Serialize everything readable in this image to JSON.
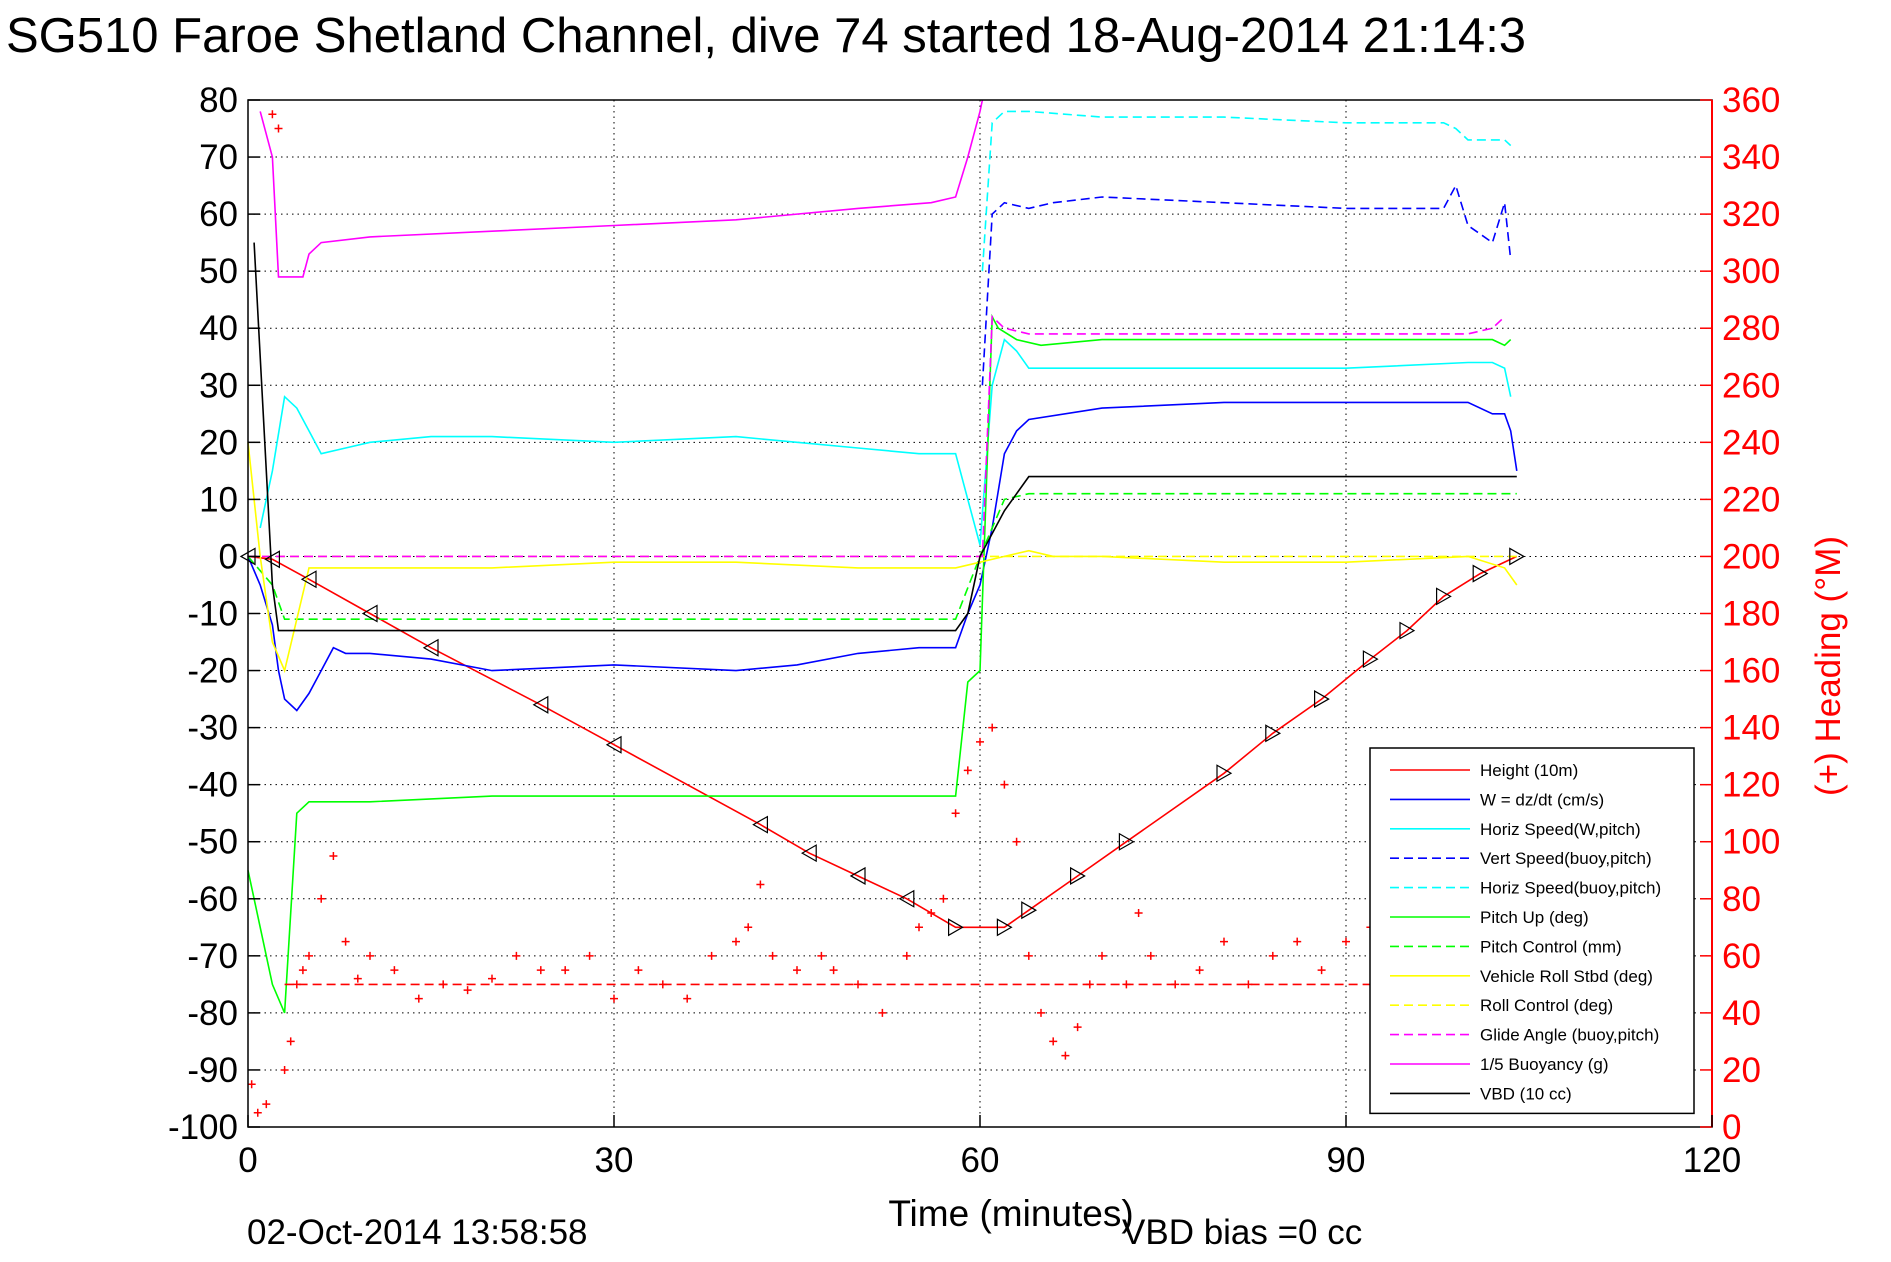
{
  "chart_data": {
    "type": "line",
    "title": "SG510 Faroe Shetland Channel, dive 74 started 18-Aug-2014 21:14:3",
    "xlabel": "Time (minutes)",
    "ylabel_right": "(+) Heading (°M)",
    "xlim": [
      0,
      120
    ],
    "ylim_left": [
      -100,
      80
    ],
    "ylim_right": [
      0,
      360
    ],
    "xticks": [
      "0",
      "30",
      "60",
      "90",
      "120"
    ],
    "yticks_left": [
      "80",
      "70",
      "60",
      "50",
      "40",
      "30",
      "20",
      "10",
      "0",
      "-10",
      "-20",
      "-30",
      "-40",
      "-50",
      "-60",
      "-70",
      "-80",
      "-90",
      "-100"
    ],
    "yticks_right": [
      "360",
      "340",
      "320",
      "300",
      "280",
      "260",
      "240",
      "220",
      "200",
      "180",
      "160",
      "140",
      "120",
      "100",
      "80",
      "60",
      "40",
      "20",
      "0"
    ],
    "grid": true,
    "legend_position": "bottom-right",
    "footer_date": "02-Oct-2014 13:58:58",
    "footer_note": "VBD bias =0 cc",
    "colors": {
      "red": "#ff0000",
      "blue": "#0000ff",
      "cyan": "#00ffff",
      "green": "#00ff00",
      "yellow": "#ffff00",
      "magenta": "#ff00ff",
      "black": "#000000"
    },
    "series": [
      {
        "name": "Height (10m)",
        "color": "#ff0000",
        "dash": "solid",
        "x": [
          0,
          2,
          5,
          10,
          15,
          24,
          30,
          42,
          46,
          50,
          54,
          58,
          62,
          64,
          68,
          72,
          80,
          84,
          88,
          92,
          95,
          98,
          101,
          104
        ],
        "y": [
          0,
          -0.5,
          -4,
          -10,
          -16,
          -26,
          -33,
          -47,
          -52,
          -56,
          -60,
          -65,
          -65,
          -62,
          -56,
          -50,
          -38,
          -31,
          -25,
          -18,
          -13,
          -7,
          -3,
          0
        ]
      },
      {
        "name": "W = dz/dt (cm/s)",
        "color": "#0000ff",
        "dash": "solid",
        "x": [
          0,
          1,
          2,
          2.5,
          3,
          4,
          5,
          6,
          7,
          8,
          10,
          15,
          20,
          30,
          40,
          45,
          50,
          55,
          58,
          59,
          60,
          61,
          62,
          63,
          64,
          70,
          80,
          90,
          100,
          102,
          103,
          103.5,
          104
        ],
        "y": [
          0,
          -5,
          -12,
          -20,
          -25,
          -27,
          -24,
          -20,
          -16,
          -17,
          -17,
          -18,
          -20,
          -19,
          -20,
          -19,
          -17,
          -16,
          -16,
          -10,
          -5,
          5,
          18,
          22,
          24,
          26,
          27,
          27,
          27,
          25,
          25,
          22,
          15
        ]
      },
      {
        "name": "Horiz Speed(W,pitch)",
        "color": "#00ffff",
        "dash": "solid",
        "x": [
          1,
          2,
          3,
          4,
          5,
          6,
          8,
          10,
          15,
          20,
          30,
          40,
          45,
          50,
          55,
          58,
          59,
          60,
          61,
          62,
          63,
          64,
          70,
          80,
          90,
          100,
          102,
          103,
          103.5
        ],
        "y": [
          5,
          15,
          28,
          26,
          22,
          18,
          19,
          20,
          21,
          21,
          20,
          21,
          20,
          19,
          18,
          18,
          10,
          2,
          30,
          38,
          36,
          33,
          33,
          33,
          33,
          34,
          34,
          33,
          28
        ]
      },
      {
        "name": "Vert Speed(buoy,pitch)",
        "color": "#0000ff",
        "dash": "dashed",
        "x": [
          60.2,
          61,
          62,
          64,
          66,
          70,
          80,
          90,
          98,
          99,
          100,
          102,
          103,
          103.5
        ],
        "y": [
          30,
          60,
          62,
          61,
          62,
          63,
          62,
          61,
          61,
          65,
          58,
          55,
          62,
          52
        ]
      },
      {
        "name": "Horiz Speed(buoy,pitch)",
        "color": "#00ffff",
        "dash": "dashed",
        "x": [
          60.2,
          61,
          62,
          64,
          70,
          80,
          90,
          98,
          99,
          100,
          102,
          103,
          103.5
        ],
        "y": [
          50,
          76,
          78,
          78,
          77,
          77,
          76,
          76,
          75,
          73,
          73,
          73,
          72
        ]
      },
      {
        "name": "Pitch Up (deg)",
        "color": "#00ff00",
        "dash": "solid",
        "x": [
          0,
          1,
          2,
          3,
          4,
          5,
          10,
          20,
          30,
          40,
          50,
          55,
          58,
          59,
          60,
          61,
          61.5,
          63,
          65,
          70,
          80,
          90,
          100,
          102,
          103,
          103.5
        ],
        "y": [
          -55,
          -65,
          -75,
          -80,
          -45,
          -43,
          -43,
          -42,
          -42,
          -42,
          -42,
          -42,
          -42,
          -22,
          -20,
          42,
          40,
          38,
          37,
          38,
          38,
          38,
          38,
          38,
          37,
          38
        ]
      },
      {
        "name": "Pitch Control (mm)",
        "color": "#00ff00",
        "dash": "dashed",
        "x": [
          0,
          2,
          3,
          5,
          10,
          20,
          30,
          40,
          50,
          58,
          60,
          62,
          64,
          70,
          80,
          90,
          100,
          104
        ],
        "y": [
          0,
          -5,
          -11,
          -11,
          -11,
          -11,
          -11,
          -11,
          -11,
          -11,
          0,
          10,
          11,
          11,
          11,
          11,
          11,
          11
        ]
      },
      {
        "name": "Vehicle Roll Stbd (deg)",
        "color": "#ffff00",
        "dash": "solid",
        "x": [
          0,
          1,
          2,
          3,
          5,
          10,
          20,
          30,
          40,
          50,
          58,
          60,
          62,
          64,
          66,
          70,
          80,
          90,
          100,
          103,
          104
        ],
        "y": [
          20,
          0,
          -15,
          -20,
          -2,
          -2,
          -2,
          -1,
          -1,
          -2,
          -2,
          -1,
          0,
          1,
          0,
          0,
          -1,
          -1,
          0,
          -2,
          -5
        ]
      },
      {
        "name": "Roll Control (deg)",
        "color": "#ffff00",
        "dash": "dashed",
        "x": [
          0,
          2,
          4,
          10,
          20,
          30,
          40,
          50,
          58,
          60,
          62,
          64,
          70,
          80,
          90,
          100,
          104
        ],
        "y": [
          0,
          0,
          0,
          0,
          0,
          0,
          0,
          0,
          0,
          0,
          0,
          0,
          0,
          0,
          0,
          0,
          0
        ]
      },
      {
        "name": "Glide Angle (buoy,pitch)",
        "color": "#ff00ff",
        "dash": "dashed",
        "x": [
          0,
          10,
          20,
          30,
          40,
          50,
          58,
          60.2,
          61,
          62,
          64,
          70,
          80,
          90,
          100,
          102,
          103
        ],
        "y": [
          0,
          0,
          0,
          0,
          0,
          0,
          0,
          0,
          42,
          40,
          39,
          39,
          39,
          39,
          39,
          40,
          42
        ]
      },
      {
        "name": "1/5 Buoyancy (g)",
        "color": "#ff00ff",
        "dash": "solid",
        "x": [
          1,
          2,
          2.5,
          4.5,
          5,
          6,
          10,
          20,
          30,
          40,
          50,
          56,
          58,
          59,
          60,
          60.2
        ],
        "y": [
          78,
          70,
          49,
          49,
          53,
          55,
          56,
          57,
          58,
          59,
          61,
          62,
          63,
          70,
          78,
          80
        ]
      },
      {
        "name": "VBD (10 cc)",
        "color": "#000000",
        "dash": "solid",
        "x": [
          0.5,
          1,
          2,
          2.5,
          5,
          10,
          20,
          30,
          40,
          50,
          58,
          59,
          60,
          62,
          63,
          64,
          70,
          80,
          90,
          100,
          104
        ],
        "y": [
          55,
          35,
          -5,
          -13,
          -13,
          -13,
          -13,
          -13,
          -13,
          -13,
          -13,
          -10,
          0,
          8,
          11,
          14,
          14,
          14,
          14,
          14,
          14
        ]
      },
      {
        "axis": "right",
        "marker": "+",
        "color": "#ff0000",
        "x": [
          0.3,
          0.8,
          1.5,
          2,
          2.5,
          3,
          3.5,
          4,
          4.5,
          5,
          6,
          7,
          8,
          9,
          10,
          12,
          14,
          16,
          18,
          20,
          22,
          24,
          26,
          28,
          30,
          32,
          34,
          36,
          38,
          40,
          41,
          42,
          43,
          45,
          47,
          48,
          50,
          52,
          54,
          55,
          56,
          57,
          58,
          59,
          60,
          61,
          62,
          63,
          64,
          65,
          66,
          67,
          68,
          69,
          70,
          72,
          73,
          74,
          76,
          78,
          80,
          82,
          84,
          86,
          88,
          90,
          92,
          94
        ],
        "y": [
          15,
          5,
          8,
          355,
          350,
          20,
          30,
          50,
          55,
          60,
          80,
          95,
          65,
          52,
          60,
          55,
          45,
          50,
          48,
          52,
          60,
          55,
          55,
          60,
          45,
          55,
          50,
          45,
          60,
          65,
          70,
          85,
          60,
          55,
          60,
          55,
          50,
          40,
          60,
          70,
          75,
          80,
          110,
          125,
          135,
          140,
          120,
          100,
          60,
          40,
          30,
          25,
          35,
          50,
          60,
          50,
          75,
          60,
          50,
          55,
          65,
          50,
          60,
          65,
          55,
          65,
          70,
          55
        ]
      },
      {
        "axis": "right",
        "line": "dashed",
        "color": "#ff0000",
        "x": [
          3,
          100
        ],
        "y": [
          50,
          50
        ]
      }
    ]
  }
}
